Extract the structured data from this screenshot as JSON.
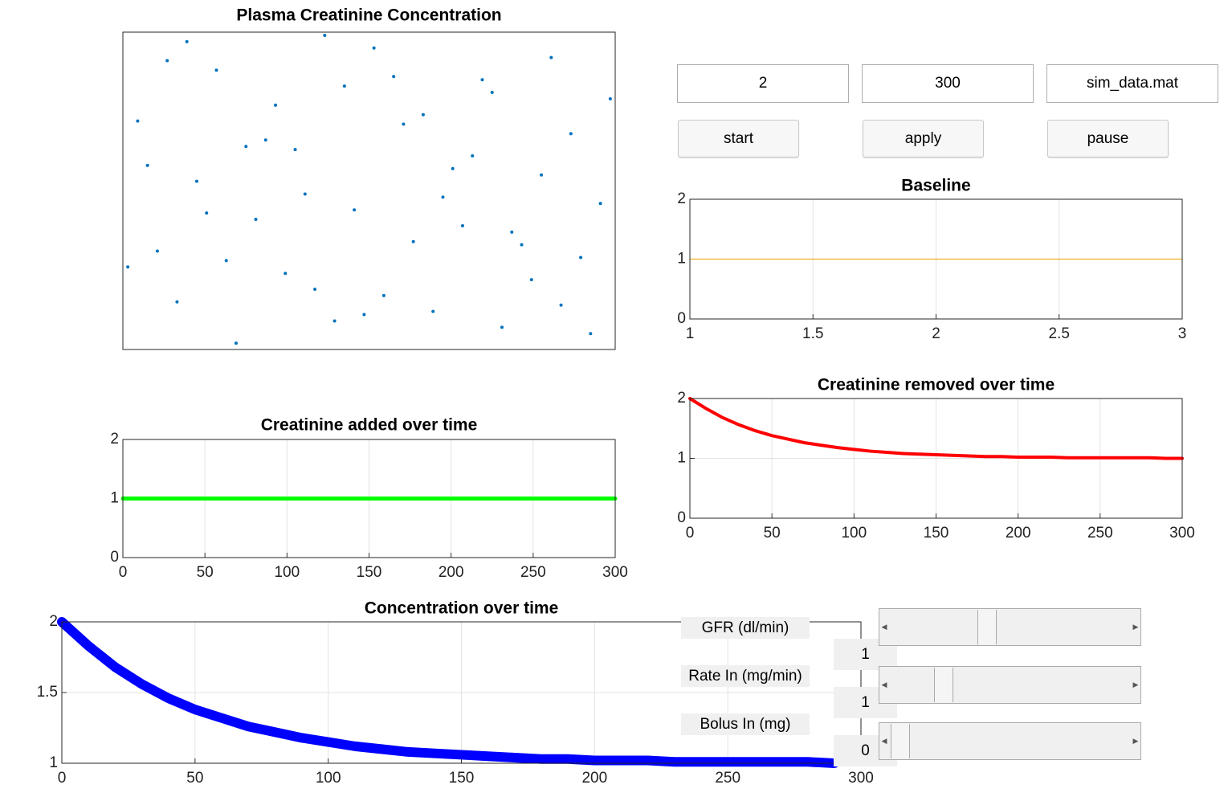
{
  "chart_data": [
    {
      "type": "scatter",
      "title": "Plasma Creatinine Concentration",
      "color": "#0072bd",
      "xlim": [
        0,
        1
      ],
      "ylim": [
        0,
        1
      ],
      "x": [
        0.03,
        0.11,
        0.19,
        0.27,
        0.35,
        0.43,
        0.51,
        0.59,
        0.67,
        0.75,
        0.83,
        0.91,
        0.97,
        0.07,
        0.15,
        0.23,
        0.31,
        0.39,
        0.47,
        0.55,
        0.63,
        0.71,
        0.79,
        0.87,
        0.95,
        0.05,
        0.13,
        0.21,
        0.29,
        0.37,
        0.45,
        0.53,
        0.61,
        0.69,
        0.77,
        0.85,
        0.93,
        0.09,
        0.17,
        0.25,
        0.33,
        0.41,
        0.49,
        0.57,
        0.65,
        0.73,
        0.81,
        0.89,
        0.99,
        0.01
      ],
      "values": [
        0.72,
        0.15,
        0.88,
        0.41,
        0.63,
        0.09,
        0.95,
        0.34,
        0.57,
        0.81,
        0.22,
        0.68,
        0.46,
        0.31,
        0.53,
        0.02,
        0.77,
        0.19,
        0.44,
        0.86,
        0.12,
        0.61,
        0.37,
        0.92,
        0.05,
        0.58,
        0.97,
        0.28,
        0.66,
        0.49,
        0.83,
        0.17,
        0.74,
        0.39,
        0.07,
        0.55,
        0.29,
        0.91,
        0.43,
        0.64,
        0.24,
        0.99,
        0.11,
        0.71,
        0.48,
        0.85,
        0.33,
        0.14,
        0.79,
        0.26
      ]
    },
    {
      "type": "line",
      "title": "Baseline",
      "grid": true,
      "x": [
        1,
        2,
        3
      ],
      "series": [
        {
          "color": "#edb120",
          "values": [
            1,
            1,
            1
          ]
        }
      ],
      "xlim": [
        1,
        3
      ],
      "xticks": [
        1,
        1.5,
        2,
        2.5,
        3
      ],
      "ylim": [
        0,
        2
      ],
      "yticks": [
        0,
        1,
        2
      ]
    },
    {
      "type": "line",
      "title": "Creatinine removed over time",
      "grid": true,
      "x": [
        0,
        10,
        20,
        30,
        40,
        50,
        60,
        70,
        80,
        90,
        100,
        110,
        120,
        130,
        140,
        150,
        160,
        170,
        180,
        190,
        200,
        210,
        220,
        230,
        240,
        250,
        260,
        270,
        280,
        290,
        300
      ],
      "series": [
        {
          "color": "#ff0000",
          "values": [
            2,
            1.83,
            1.68,
            1.56,
            1.46,
            1.38,
            1.32,
            1.26,
            1.22,
            1.18,
            1.15,
            1.12,
            1.1,
            1.08,
            1.07,
            1.06,
            1.05,
            1.04,
            1.03,
            1.03,
            1.02,
            1.02,
            1.02,
            1.01,
            1.01,
            1.01,
            1.01,
            1.01,
            1.01,
            1,
            1
          ]
        }
      ],
      "xlim": [
        0,
        300
      ],
      "xticks": [
        0,
        50,
        100,
        150,
        200,
        250,
        300
      ],
      "ylim": [
        0,
        2
      ],
      "yticks": [
        0,
        1,
        2
      ]
    },
    {
      "type": "line",
      "title": "Creatinine added over time",
      "grid": true,
      "x": [
        0,
        300
      ],
      "series": [
        {
          "color": "#00ff00",
          "values": [
            1,
            1
          ]
        }
      ],
      "xlim": [
        0,
        300
      ],
      "xticks": [
        0,
        50,
        100,
        150,
        200,
        250,
        300
      ],
      "ylim": [
        0,
        2
      ],
      "yticks": [
        0,
        1,
        2
      ]
    },
    {
      "type": "line",
      "title": "Concentration over time",
      "grid": true,
      "x": [
        0,
        10,
        20,
        30,
        40,
        50,
        60,
        70,
        80,
        90,
        100,
        110,
        120,
        130,
        140,
        150,
        160,
        170,
        180,
        190,
        200,
        210,
        220,
        230,
        240,
        250,
        260,
        270,
        280,
        290
      ],
      "series": [
        {
          "color": "#0000ff",
          "values": [
            2,
            1.83,
            1.68,
            1.56,
            1.46,
            1.38,
            1.32,
            1.26,
            1.22,
            1.18,
            1.15,
            1.12,
            1.1,
            1.08,
            1.07,
            1.06,
            1.05,
            1.04,
            1.03,
            1.03,
            1.02,
            1.02,
            1.02,
            1.01,
            1.01,
            1.01,
            1.01,
            1.01,
            1.01,
            1
          ]
        }
      ],
      "xlim": [
        0,
        300
      ],
      "xticks": [
        0,
        50,
        100,
        150,
        200,
        250,
        300
      ],
      "ylim": [
        1,
        2
      ],
      "yticks": [
        1,
        1.5,
        2
      ]
    }
  ],
  "controls": {
    "fields": [
      "2",
      "300",
      "sim_data.mat"
    ],
    "buttons": [
      "start",
      "apply",
      "pause"
    ],
    "sliders": [
      {
        "label": "GFR (dl/min)",
        "value": 1
      },
      {
        "label": "Rate In (mg/min)",
        "value": 1
      },
      {
        "label": "Bolus In (mg)",
        "value": 0
      }
    ]
  }
}
